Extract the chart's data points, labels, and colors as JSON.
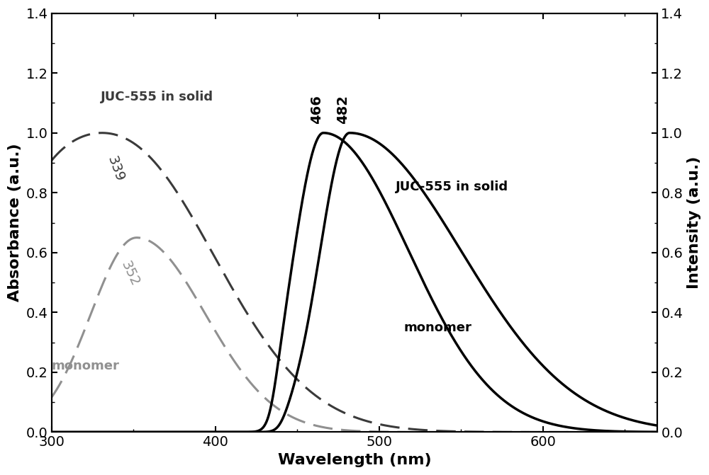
{
  "title": "",
  "xlabel": "Wavelength (nm)",
  "ylabel_left": "Absorbance (a.u.)",
  "ylabel_right": "Intensity (a.u.)",
  "xlim": [
    300,
    670
  ],
  "ylim": [
    0,
    1.4
  ],
  "background_color": "#ffffff",
  "annotation_339": "339",
  "annotation_352": "352",
  "annotation_466": "466",
  "annotation_482": "482",
  "label_abs_juc": "JUC-555 in solid",
  "label_abs_mono": "monomer",
  "label_em_juc": "JUC-555 in solid",
  "label_em_mono": "monomer",
  "abs_juc_color": "#3a3a3a",
  "abs_mono_color": "#909090",
  "em_color": "#000000"
}
